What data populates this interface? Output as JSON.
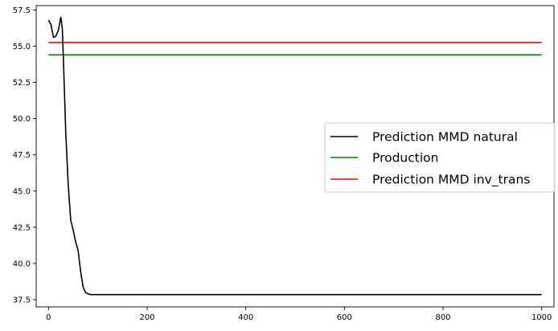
{
  "chart_data": {
    "type": "line",
    "xlim": [
      -25,
      1025
    ],
    "ylim": [
      37.0,
      57.8
    ],
    "x_ticks": [
      0,
      200,
      400,
      600,
      800,
      1000
    ],
    "x_tick_labels": [
      "0",
      "200",
      "400",
      "600",
      "800",
      "1000"
    ],
    "y_ticks": [
      37.5,
      40.0,
      42.5,
      45.0,
      47.5,
      50.0,
      52.5,
      55.0,
      57.5
    ],
    "y_tick_labels": [
      "37.5",
      "40.0",
      "42.5",
      "45.0",
      "47.5",
      "50.0",
      "52.5",
      "55.0",
      "57.5"
    ],
    "grid": false,
    "legend_position": "center-right",
    "series": [
      {
        "name": "Prediction MMD natural",
        "color": "#000000",
        "x": [
          0,
          5,
          10,
          15,
          20,
          25,
          28,
          30,
          35,
          40,
          45,
          50,
          55,
          60,
          65,
          70,
          75,
          80,
          85,
          90,
          100,
          150,
          200,
          300,
          400,
          500,
          600,
          700,
          800,
          900,
          1000
        ],
        "y": [
          56.8,
          56.5,
          55.6,
          55.7,
          56.1,
          57.0,
          56.2,
          54.3,
          49.0,
          45.4,
          43.0,
          42.3,
          41.5,
          40.9,
          39.5,
          38.4,
          38.0,
          37.9,
          37.85,
          37.85,
          37.85,
          37.85,
          37.85,
          37.85,
          37.85,
          37.85,
          37.85,
          37.85,
          37.85,
          37.85,
          37.85
        ]
      },
      {
        "name": "Production",
        "color": "#008000",
        "x": [
          0,
          1000
        ],
        "y": [
          54.4,
          54.4
        ]
      },
      {
        "name": "Prediction MMD inv_trans",
        "color": "#ff0000",
        "x": [
          0,
          1000
        ],
        "y": [
          55.25,
          55.25
        ]
      }
    ]
  }
}
